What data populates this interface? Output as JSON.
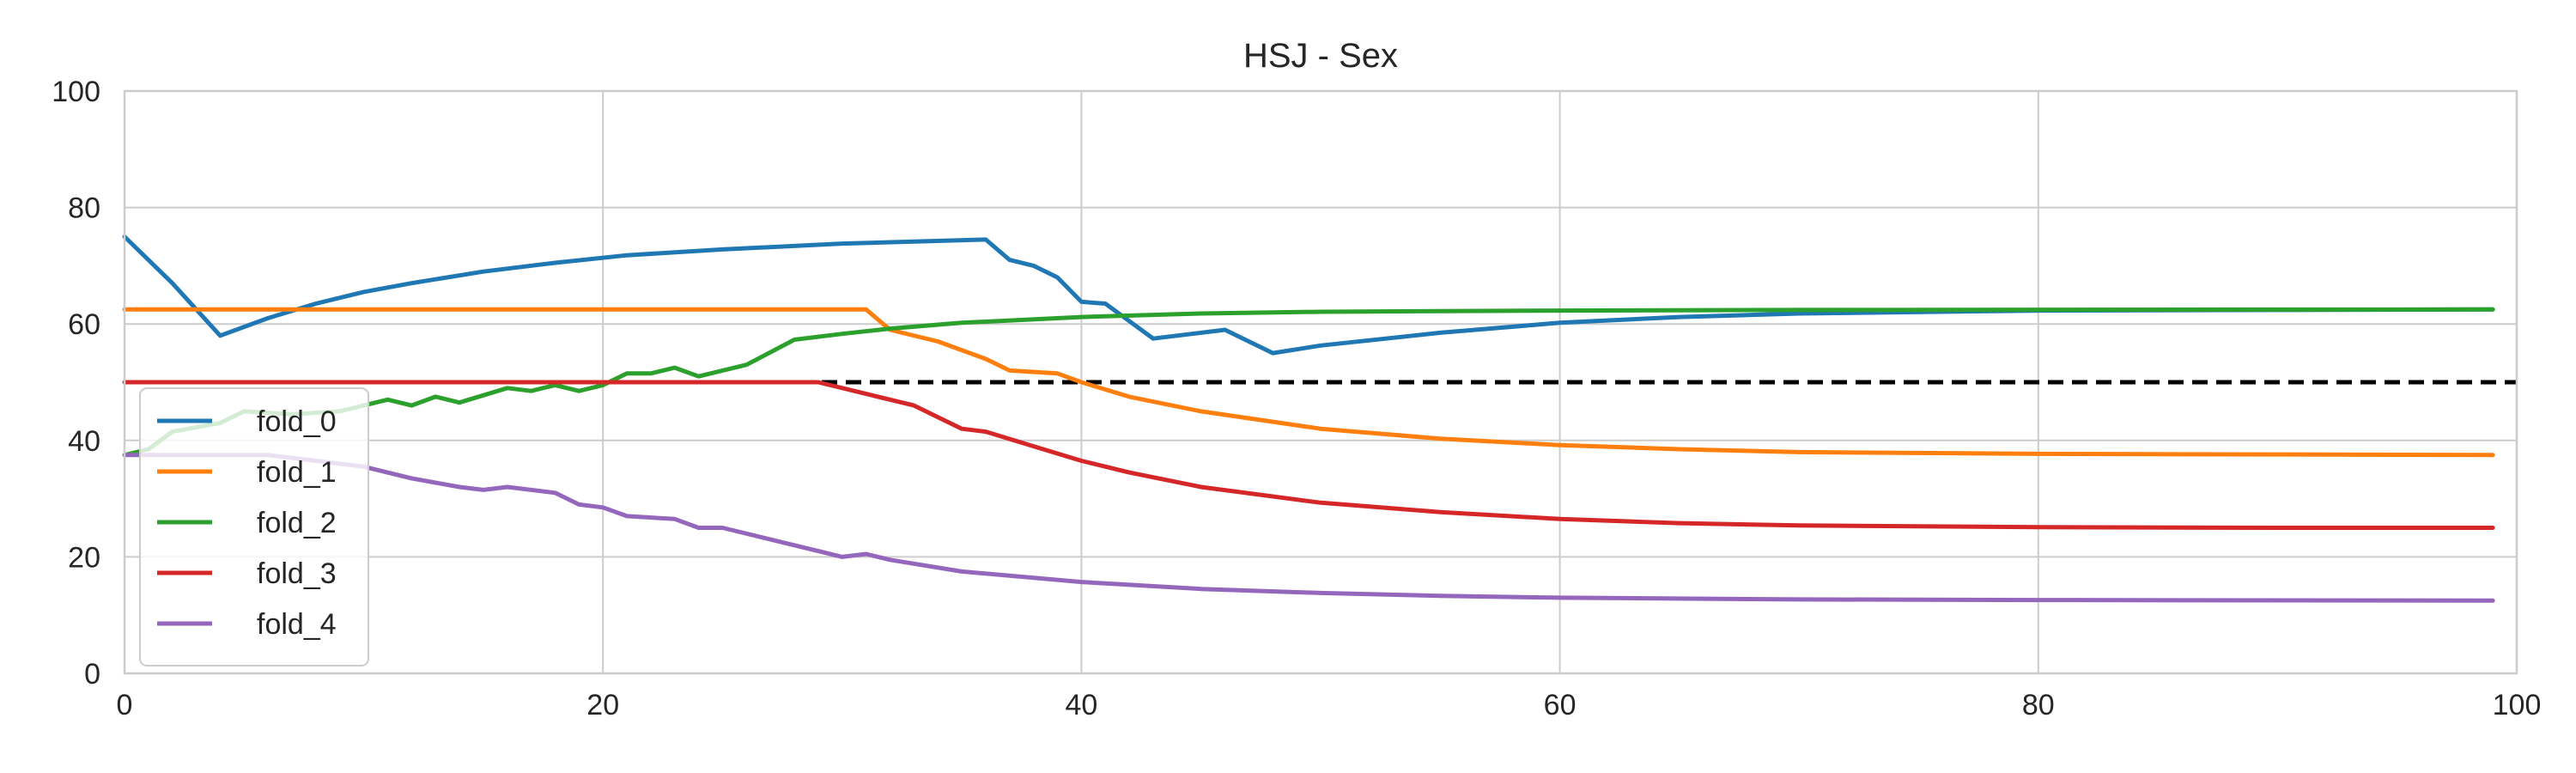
{
  "chart_data": {
    "type": "line",
    "title": "HSJ - Sex",
    "xlabel": "",
    "ylabel": "",
    "xlim": [
      0,
      100
    ],
    "ylim": [
      0,
      100
    ],
    "x_ticks": [
      0,
      20,
      40,
      60,
      80,
      100
    ],
    "y_ticks": [
      0,
      20,
      40,
      60,
      80,
      100
    ],
    "grid": true,
    "legend_position": "lower-left",
    "reference_line": {
      "y": 50,
      "style": "dashed",
      "color": "#000000"
    },
    "series": [
      {
        "name": "fold_0",
        "color": "#1f77b4",
        "points": [
          [
            0,
            75
          ],
          [
            2,
            67
          ],
          [
            4,
            58
          ],
          [
            6,
            61
          ],
          [
            8,
            63.5
          ],
          [
            10,
            65.5
          ],
          [
            12,
            67
          ],
          [
            15,
            69
          ],
          [
            18,
            70.5
          ],
          [
            21,
            71.8
          ],
          [
            25,
            72.8
          ],
          [
            30,
            73.8
          ],
          [
            36,
            74.5
          ],
          [
            37,
            71
          ],
          [
            38,
            70
          ],
          [
            39,
            68
          ],
          [
            40,
            63.8
          ],
          [
            41,
            63.5
          ],
          [
            43,
            57.5
          ],
          [
            46,
            59
          ],
          [
            48,
            55
          ],
          [
            50,
            56.3
          ],
          [
            55,
            58.5
          ],
          [
            60,
            60.2
          ],
          [
            65,
            61.2
          ],
          [
            70,
            61.8
          ],
          [
            80,
            62.3
          ],
          [
            90,
            62.4
          ],
          [
            99,
            62.5
          ]
        ]
      },
      {
        "name": "fold_1",
        "color": "#ff7f0e",
        "points": [
          [
            0,
            62.5
          ],
          [
            31,
            62.5
          ],
          [
            32,
            59
          ],
          [
            34,
            57
          ],
          [
            36,
            54
          ],
          [
            37,
            52
          ],
          [
            39,
            51.5
          ],
          [
            40,
            50
          ],
          [
            42,
            47.5
          ],
          [
            45,
            45
          ],
          [
            50,
            42
          ],
          [
            55,
            40.3
          ],
          [
            60,
            39.2
          ],
          [
            65,
            38.5
          ],
          [
            70,
            38
          ],
          [
            80,
            37.7
          ],
          [
            90,
            37.6
          ],
          [
            99,
            37.5
          ]
        ]
      },
      {
        "name": "fold_2",
        "color": "#2ca02c",
        "points": [
          [
            0,
            37.5
          ],
          [
            1,
            38.5
          ],
          [
            2,
            41.5
          ],
          [
            4,
            43
          ],
          [
            5,
            45
          ],
          [
            7,
            44.5
          ],
          [
            9,
            45
          ],
          [
            10,
            46
          ],
          [
            11,
            47
          ],
          [
            12,
            46
          ],
          [
            13,
            47.5
          ],
          [
            14,
            46.5
          ],
          [
            16,
            49
          ],
          [
            17,
            48.5
          ],
          [
            18,
            49.5
          ],
          [
            19,
            48.5
          ],
          [
            20,
            49.5
          ],
          [
            21,
            51.5
          ],
          [
            22,
            51.5
          ],
          [
            23,
            52.5
          ],
          [
            24,
            51
          ],
          [
            26,
            53
          ],
          [
            28,
            57.3
          ],
          [
            30,
            58.3
          ],
          [
            32,
            59.2
          ],
          [
            35,
            60.2
          ],
          [
            40,
            61.2
          ],
          [
            45,
            61.8
          ],
          [
            50,
            62.1
          ],
          [
            60,
            62.3
          ],
          [
            70,
            62.4
          ],
          [
            80,
            62.45
          ],
          [
            99,
            62.5
          ]
        ]
      },
      {
        "name": "fold_3",
        "color": "#d62728",
        "points": [
          [
            0,
            50
          ],
          [
            29,
            50
          ],
          [
            31,
            48
          ],
          [
            33,
            46
          ],
          [
            35,
            42
          ],
          [
            36,
            41.5
          ],
          [
            38,
            39
          ],
          [
            40,
            36.5
          ],
          [
            42,
            34.5
          ],
          [
            45,
            32
          ],
          [
            50,
            29.3
          ],
          [
            55,
            27.7
          ],
          [
            60,
            26.5
          ],
          [
            65,
            25.8
          ],
          [
            70,
            25.4
          ],
          [
            80,
            25.1
          ],
          [
            90,
            25
          ],
          [
            99,
            25
          ]
        ]
      },
      {
        "name": "fold_4",
        "color": "#9467bd",
        "points": [
          [
            0,
            37.5
          ],
          [
            6,
            37.5
          ],
          [
            8,
            36.5
          ],
          [
            10,
            35.5
          ],
          [
            12,
            33.5
          ],
          [
            14,
            32
          ],
          [
            15,
            31.5
          ],
          [
            16,
            32
          ],
          [
            18,
            31
          ],
          [
            19,
            29
          ],
          [
            20,
            28.5
          ],
          [
            21,
            27
          ],
          [
            23,
            26.5
          ],
          [
            24,
            25
          ],
          [
            25,
            25
          ],
          [
            27,
            23
          ],
          [
            29,
            21
          ],
          [
            30,
            20
          ],
          [
            31,
            20.5
          ],
          [
            32,
            19.5
          ],
          [
            35,
            17.5
          ],
          [
            40,
            15.7
          ],
          [
            45,
            14.5
          ],
          [
            50,
            13.8
          ],
          [
            55,
            13.3
          ],
          [
            60,
            13
          ],
          [
            70,
            12.7
          ],
          [
            80,
            12.6
          ],
          [
            99,
            12.5
          ]
        ]
      }
    ]
  }
}
